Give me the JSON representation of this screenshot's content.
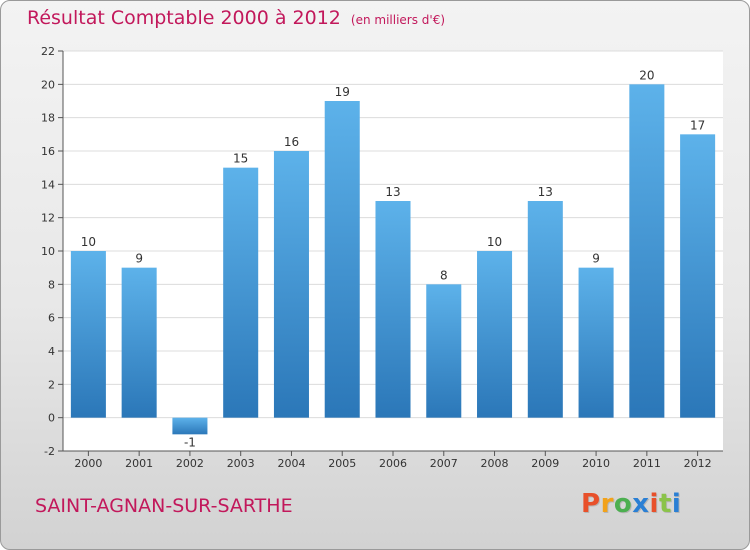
{
  "header": {
    "title": "Résultat Comptable 2000 à 2012",
    "unit": "(en milliers d'€)"
  },
  "footer": {
    "commune": "SAINT-AGNAN-SUR-SARTHE",
    "logo": "Proxiti",
    "logo_colors": [
      "#e8502a",
      "#f2a21a",
      "#4caf50",
      "#2a7fd4",
      "#e8502a",
      "#8bc34a",
      "#2a7fd4"
    ]
  },
  "colors": {
    "title": "#c2185b",
    "bar_top": "#5db2ea",
    "bar_bottom": "#2b77b8",
    "grid": "#dcdcdc",
    "axis": "#555555"
  },
  "chart_data": {
    "type": "bar",
    "title": "Résultat Comptable 2000 à 2012",
    "subtitle": "(en milliers d'€)",
    "categories": [
      "2000",
      "2001",
      "2002",
      "2003",
      "2004",
      "2005",
      "2006",
      "2007",
      "2008",
      "2009",
      "2010",
      "2011",
      "2012"
    ],
    "values": [
      10,
      9,
      -1,
      15,
      16,
      19,
      13,
      8,
      10,
      13,
      9,
      20,
      17
    ],
    "ylim": [
      -2,
      22
    ],
    "yticks": [
      -2,
      0,
      2,
      4,
      6,
      8,
      10,
      12,
      14,
      16,
      18,
      20,
      22
    ],
    "xlabel": "",
    "ylabel": "",
    "grid": true,
    "legend": false
  }
}
